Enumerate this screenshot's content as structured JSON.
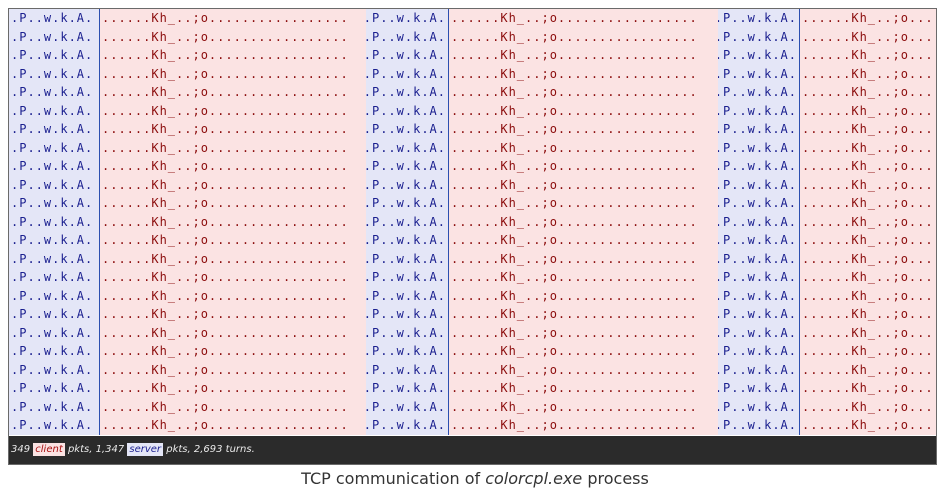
{
  "stream": {
    "server_text": ".P..w.k.A.",
    "client_text": "......Kh_..;o.................",
    "row_count": 23
  },
  "status_bar": {
    "client_count": "349",
    "client_label": "client",
    "middle": "pkts, 1,347",
    "server_label": "server",
    "suffix": "pkts, 2,693 turns."
  },
  "caption": {
    "prefix": "TCP communication of ",
    "filename": "colorcpl.exe",
    "suffix": " process"
  },
  "colors": {
    "client_bg": "#fbe3e3",
    "client_text": "#8c0d0d",
    "server_bg": "#e4e6f7",
    "server_text": "#1a1f8f",
    "status_bg": "#2b2b2b"
  }
}
